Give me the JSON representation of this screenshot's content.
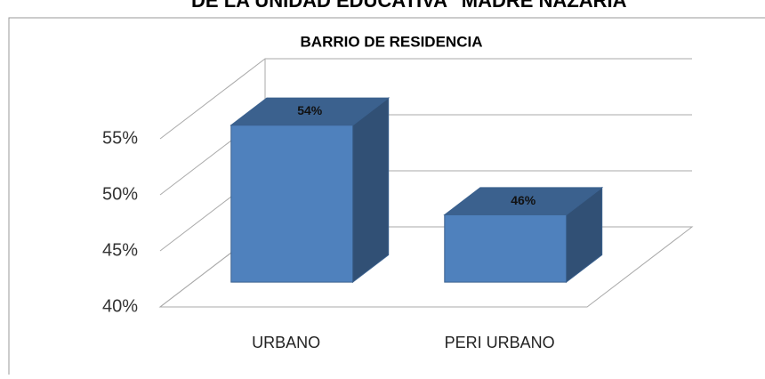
{
  "header": {
    "title": "DE LA UNIDAD EDUCATIVA \"MADRE NAZARIA\""
  },
  "chart_data": {
    "type": "bar3d",
    "title": "BARRIO DE RESIDENCIA",
    "categories": [
      "URBANO",
      "PERI URBANO"
    ],
    "values": [
      54,
      46
    ],
    "value_labels": [
      "54%",
      "46%"
    ],
    "color": "#4f81bd",
    "ylim": [
      40,
      55
    ],
    "yticks": [
      {
        "value": 40,
        "label": "40%"
      },
      {
        "value": 45,
        "label": "45%"
      },
      {
        "value": 50,
        "label": "50%"
      },
      {
        "value": 55,
        "label": "55%"
      }
    ],
    "grid": true
  }
}
